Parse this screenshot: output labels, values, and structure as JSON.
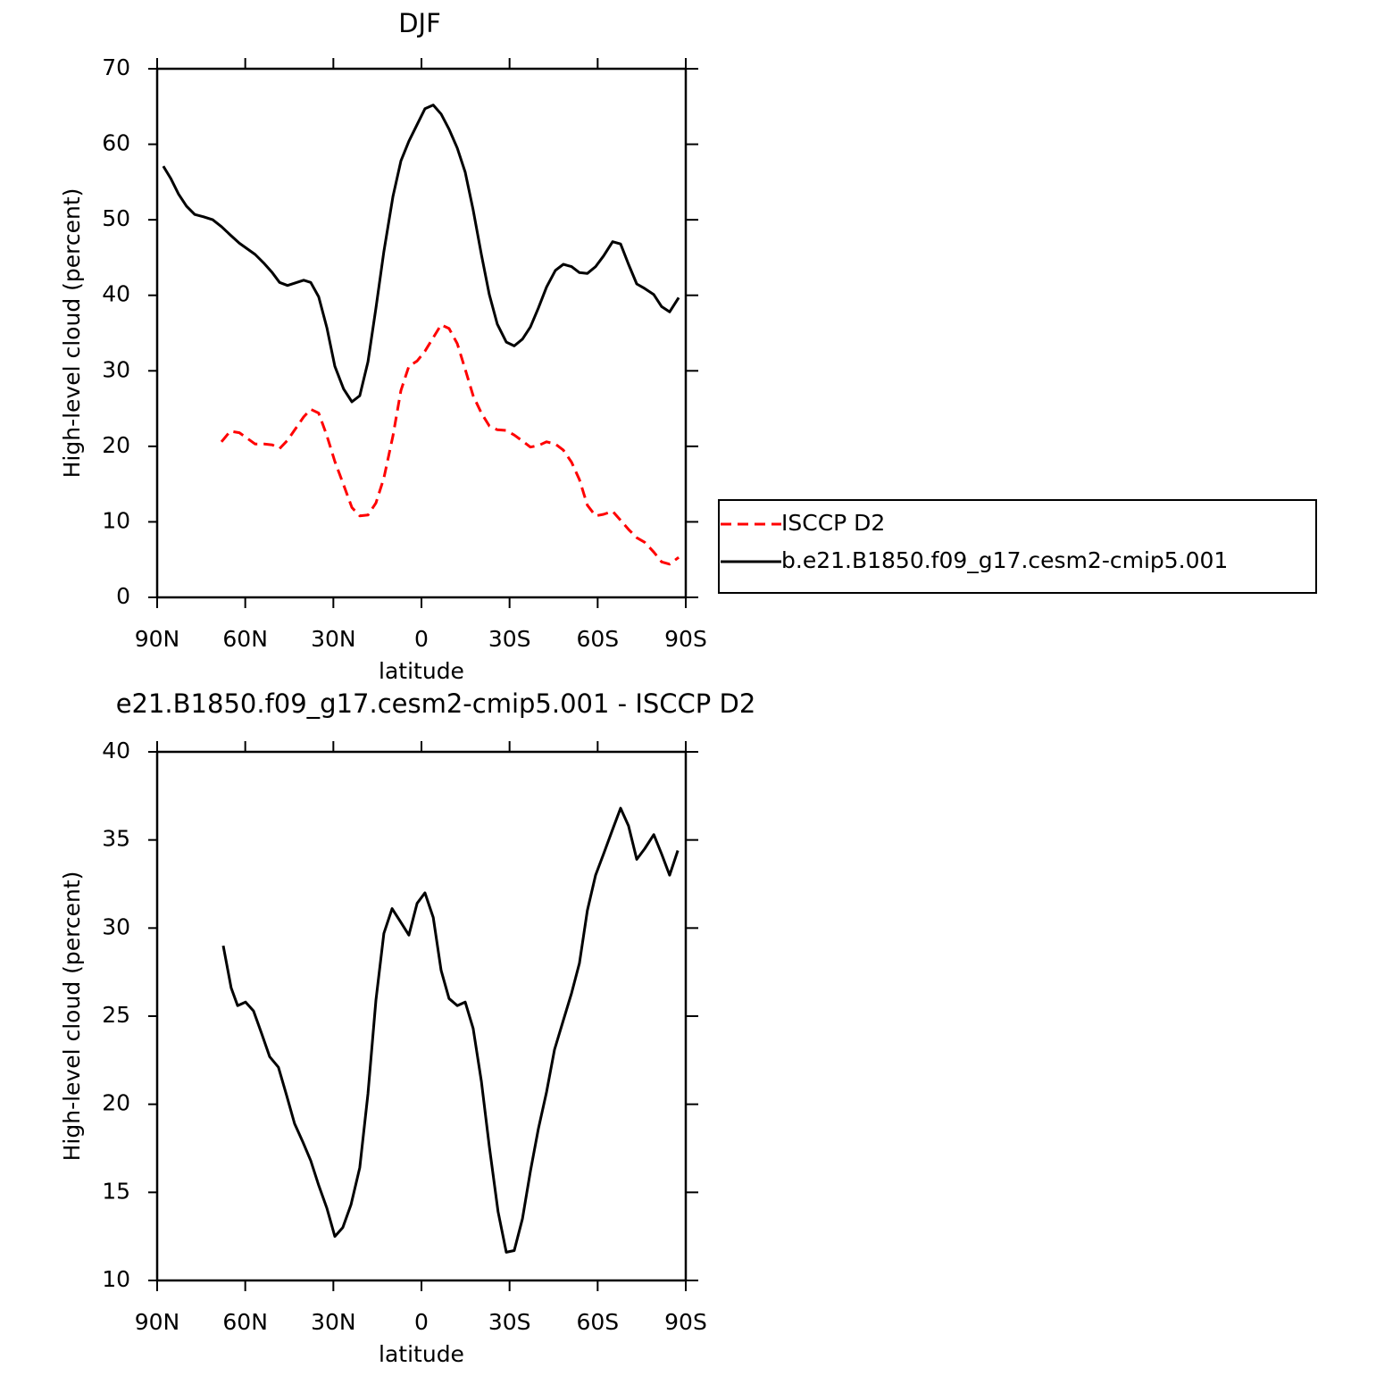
{
  "chart_data": [
    {
      "type": "line",
      "title": "DJF",
      "xlabel": "latitude",
      "ylabel": "High-level cloud (percent)",
      "x": [
        87.9,
        85.4,
        82.7,
        80,
        77.2,
        74.2,
        71.1,
        68.1,
        65.1,
        62,
        56.6,
        53.5,
        50.8,
        48.3,
        45.6,
        40.1,
        37.7,
        35,
        32.2,
        29.5,
        26.5,
        23.7,
        21,
        18.2,
        15.5,
        12.8,
        9.7,
        7,
        4.3,
        1.5,
        -1.2,
        -4,
        -6.7,
        -9.4,
        -12.2,
        -14.9,
        -17.6,
        -20.4,
        -23.1,
        -25.8,
        -28.9,
        -31.6,
        -34.4,
        -37.1,
        -39.8,
        -42.6,
        -45.6,
        -48.3,
        -51.1,
        -53.8,
        -56.5,
        -59.3,
        -62,
        -65.1,
        -67.8,
        -70.5,
        -73.3,
        -76,
        -79.1,
        -81.8,
        -84.5,
        -87.6
      ],
      "series": [
        {
          "name": "ISCCP D2",
          "color": "#ff0000",
          "dashed": true,
          "values": [
            null,
            null,
            null,
            null,
            null,
            null,
            null,
            20.6,
            22.0,
            21.8,
            20.3,
            20.3,
            20.2,
            19.7,
            20.8,
            23.9,
            24.9,
            24.4,
            21.4,
            18.0,
            14.9,
            11.9,
            10.8,
            10.9,
            12.5,
            15.8,
            21.4,
            27.4,
            30.6,
            31.3,
            32.6,
            34.4,
            36.1,
            35.6,
            33.6,
            30.2,
            26.7,
            24.4,
            22.7,
            22.2,
            22.1,
            21.5,
            20.7,
            19.9,
            20.1,
            20.6,
            20.3,
            19.5,
            17.9,
            15.6,
            12.2,
            10.8,
            11.0,
            11.4,
            10.2,
            9.0,
            7.9,
            7.3,
            6.0,
            4.7,
            4.4,
            5.3
          ]
        },
        {
          "name": "b.e21.B1850.f09_g17.cesm2-cmip5.001",
          "color": "#000000",
          "dashed": false,
          "values": [
            57.1,
            55.5,
            53.4,
            51.8,
            50.7,
            50.4,
            50.0,
            49.1,
            48.0,
            46.9,
            45.4,
            44.2,
            43.0,
            41.7,
            41.3,
            42.0,
            41.7,
            39.8,
            35.7,
            30.6,
            27.6,
            25.9,
            26.7,
            31.2,
            38.3,
            45.8,
            53.1,
            57.8,
            60.4,
            62.6,
            64.7,
            65.2,
            64.0,
            62.0,
            59.5,
            56.3,
            51.3,
            45.4,
            40.1,
            36.2,
            33.8,
            33.3,
            34.2,
            35.8,
            38.3,
            41.1,
            43.3,
            44.1,
            43.8,
            43.0,
            42.9,
            43.8,
            45.2,
            47.1,
            46.8,
            44.1,
            41.5,
            40.9,
            40.1,
            38.5,
            37.8,
            39.7
          ]
        }
      ],
      "xlim": [
        90,
        -90
      ],
      "ylim": [
        0,
        70
      ],
      "xticks": [
        {
          "value": 90,
          "label": "90N"
        },
        {
          "value": 60,
          "label": "60N"
        },
        {
          "value": 30,
          "label": "30N"
        },
        0,
        {
          "value": -30,
          "label": "30S"
        },
        {
          "value": -60,
          "label": "60S"
        },
        {
          "value": -90,
          "label": "90S"
        }
      ],
      "yticks": [
        0,
        10,
        20,
        30,
        40,
        50,
        60,
        70
      ],
      "legend": "right"
    },
    {
      "type": "line",
      "title": "e21.B1850.f09_g17.cesm2-cmip5.001 - ISCCP D2",
      "xlabel": "latitude",
      "ylabel": "High-level cloud (percent)",
      "x": [
        67.5,
        64.8,
        62.6,
        59.9,
        57.2,
        54.4,
        51.7,
        48.7,
        45.9,
        43.2,
        40.5,
        37.7,
        35,
        32.2,
        29.5,
        26.8,
        24,
        21,
        18.2,
        15.5,
        12.8,
        10,
        7.3,
        4.3,
        1.5,
        -1.2,
        -4,
        -6.7,
        -9.4,
        -12.2,
        -14.9,
        -17.6,
        -20.4,
        -23.1,
        -26.1,
        -28.9,
        -31.6,
        -34.4,
        -37.1,
        -39.8,
        -42.6,
        -45.3,
        -48,
        -51.1,
        -53.8,
        -56.5,
        -59.3,
        -62,
        -65.1,
        -67.8,
        -70.5,
        -73.3,
        -76,
        -79.1,
        -81.8,
        -84.5,
        -87.3
      ],
      "series": [
        {
          "color": "#000000",
          "dashed": false,
          "values": [
            29.0,
            26.6,
            25.6,
            25.8,
            25.3,
            24.0,
            22.7,
            22.1,
            20.5,
            18.9,
            17.9,
            16.8,
            15.4,
            14.1,
            12.5,
            13.0,
            14.3,
            16.4,
            20.6,
            25.9,
            29.7,
            31.1,
            30.4,
            29.6,
            31.4,
            32.0,
            30.6,
            27.6,
            26.0,
            25.6,
            25.8,
            24.3,
            21.3,
            17.6,
            13.9,
            11.6,
            11.7,
            13.5,
            16.2,
            18.6,
            20.7,
            23.1,
            24.6,
            26.3,
            28.0,
            31.0,
            33.0,
            34.2,
            35.6,
            36.8,
            35.8,
            33.9,
            34.5,
            35.3,
            34.2,
            33.0,
            34.4
          ]
        }
      ],
      "xlim": [
        90,
        -90
      ],
      "ylim": [
        10,
        40
      ],
      "xticks": [
        {
          "value": 90,
          "label": "90N"
        },
        {
          "value": 60,
          "label": "60N"
        },
        {
          "value": 30,
          "label": "30N"
        },
        0,
        {
          "value": -30,
          "label": "30S"
        },
        {
          "value": -60,
          "label": "60S"
        },
        {
          "value": -90,
          "label": "90S"
        }
      ],
      "yticks": [
        10,
        15,
        20,
        25,
        30,
        35,
        40
      ]
    }
  ]
}
